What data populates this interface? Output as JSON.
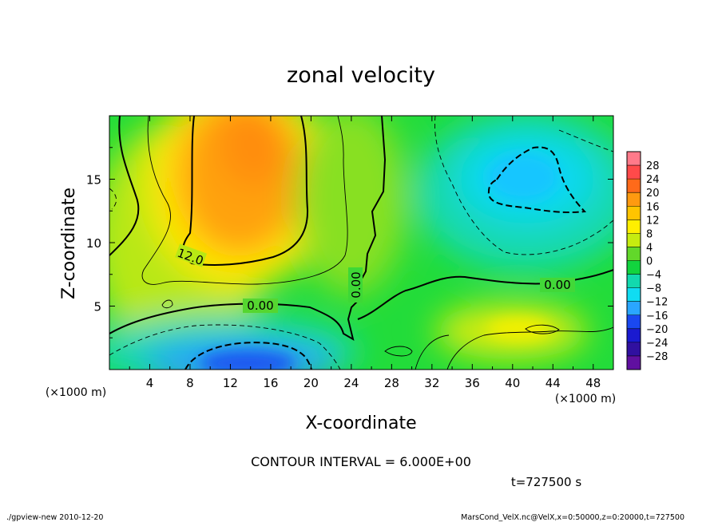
{
  "chart_data": {
    "type": "heatmap",
    "title": "zonal velocity",
    "xlabel": "X-coordinate",
    "ylabel": "Z-coordinate",
    "x_unit": "(×1000 m)",
    "y_unit": "(×1000 m)",
    "xlim": [
      0,
      50
    ],
    "ylim": [
      0,
      20
    ],
    "x_ticks": [
      "4",
      "8",
      "12",
      "16",
      "20",
      "24",
      "28",
      "32",
      "36",
      "40",
      "44",
      "48"
    ],
    "x_tick_values": [
      4,
      8,
      12,
      16,
      20,
      24,
      28,
      32,
      36,
      40,
      44,
      48
    ],
    "y_ticks": [
      "5",
      "10",
      "15"
    ],
    "y_tick_values": [
      5,
      10,
      15
    ],
    "colorbar": {
      "labels": [
        "28",
        "24",
        "20",
        "16",
        "12",
        "8",
        "4",
        "0",
        "-4",
        "-8",
        "-12",
        "-16",
        "-20",
        "-24",
        "-28"
      ],
      "colors": [
        "#ff7a8a",
        "#ff4a4a",
        "#ff6a1a",
        "#ff9a10",
        "#ffc400",
        "#ffef00",
        "#c6ec10",
        "#62d82a",
        "#12d43e",
        "#12d9ae",
        "#10dcf2",
        "#2aa6ff",
        "#1a48f0",
        "#1a1ad0",
        "#3010a0",
        "#6010a0"
      ]
    },
    "contour_labels": [
      "12.0",
      "0.00",
      "0.00",
      "0.00"
    ],
    "annotations": {
      "contour_interval": "CONTOUR INTERVAL = 6.000E+00",
      "time": "t=727500 s"
    },
    "field_features": [
      {
        "x": 14,
        "z": 15,
        "value": 17
      },
      {
        "x": 12,
        "z": 11,
        "value": 15
      },
      {
        "x": 13,
        "z": 1,
        "value": -20
      },
      {
        "x": 42,
        "z": 15,
        "value": -11
      },
      {
        "x": 40,
        "z": 3,
        "value": 9
      },
      {
        "x": 3,
        "z": 6,
        "value": 2
      },
      {
        "x": 30,
        "z": 10,
        "value": 0
      }
    ]
  },
  "footer": {
    "left": "./gpview-new  2010-12-20",
    "right": "MarsCond_VelX.nc@VelX,x=0:50000,z=0:20000,t=727500"
  }
}
